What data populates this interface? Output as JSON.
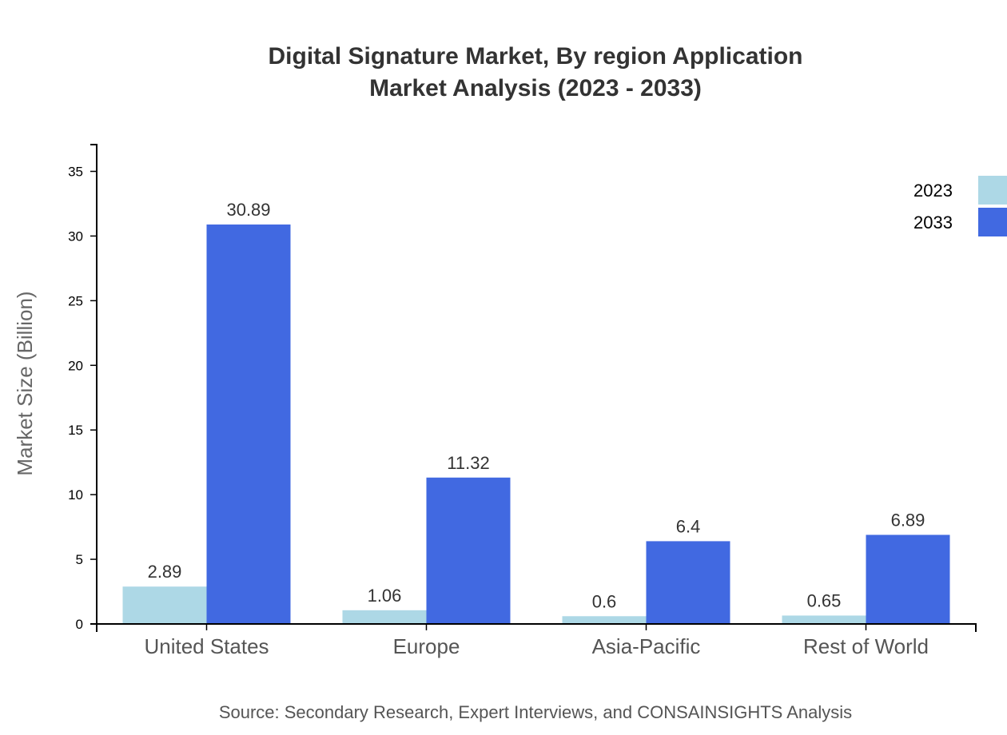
{
  "chart_data": {
    "type": "bar",
    "title_lines": [
      "Digital Signature Market, By region Application",
      "Market Analysis (2023 - 2033)"
    ],
    "xlabel": "",
    "ylabel": "Market Size (Billion)",
    "categories": [
      "United States",
      "Europe",
      "Asia-Pacific",
      "Rest of World"
    ],
    "series": [
      {
        "name": "2023",
        "color": "#add8e6",
        "values": [
          2.89,
          1.06,
          0.6,
          0.65
        ]
      },
      {
        "name": "2033",
        "color": "#4169e1",
        "values": [
          30.89,
          11.32,
          6.4,
          6.89
        ]
      }
    ],
    "ylim": [
      0,
      37.07
    ],
    "yticks": [
      0,
      5,
      10,
      15,
      20,
      25,
      30,
      35
    ],
    "grid": false,
    "legend_position": "top-right",
    "source": "Source: Secondary Research, Expert Interviews, and CONSAINSIGHTS Analysis"
  }
}
